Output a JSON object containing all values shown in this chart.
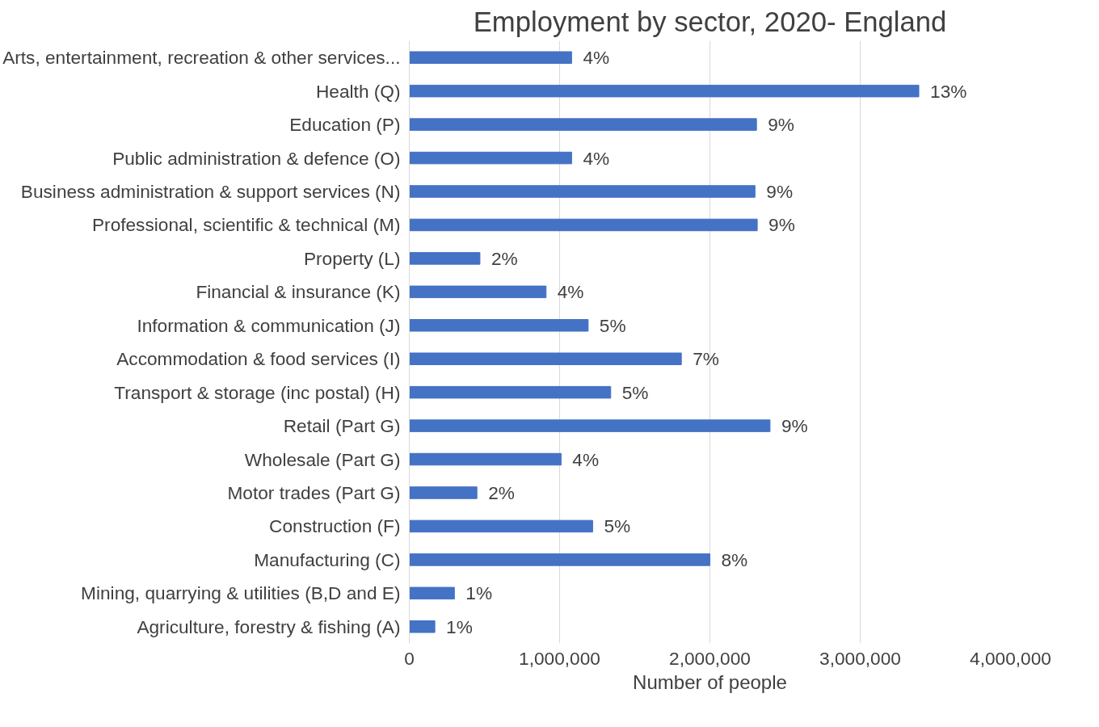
{
  "chart_data": {
    "type": "bar",
    "orientation": "horizontal",
    "title": "Employment by sector, 2020- England",
    "xlabel": "Number of people",
    "categories": [
      "Arts, entertainment, recreation & other services...",
      "Health (Q)",
      "Education (P)",
      "Public administration & defence (O)",
      "Business administration & support services (N)",
      "Professional, scientific & technical (M)",
      "Property (L)",
      "Financial & insurance (K)",
      "Information & communication (J)",
      "Accommodation & food services (I)",
      "Transport & storage (inc postal) (H)",
      "Retail (Part G)",
      "Wholesale (Part G)",
      "Motor trades (Part G)",
      "Construction (F)",
      "Manufacturing (C)",
      "Mining, quarrying & utilities (B,D and E)",
      "Agriculture, forestry & fishing (A)"
    ],
    "values": [
      1080000,
      3390000,
      2310000,
      1080000,
      2300000,
      2315000,
      470000,
      910000,
      1190000,
      1810000,
      1340000,
      2400000,
      1010000,
      450000,
      1220000,
      2000000,
      300000,
      170000
    ],
    "annotations": [
      {
        "text": "4%",
        "x": 1080000,
        "y": "Arts, entertainment, recreation & other services..."
      },
      {
        "text": "13%",
        "x": 3390000,
        "y": "Health (Q)"
      },
      {
        "text": "9%",
        "x": 2310000,
        "y": "Education (P)"
      },
      {
        "text": "4%",
        "x": 1080000,
        "y": "Public administration & defence (O)"
      },
      {
        "text": "9%",
        "x": 2300000,
        "y": "Business administration & support services (N)"
      },
      {
        "text": "9%",
        "x": 2315000,
        "y": "Professional, scientific & technical (M)"
      },
      {
        "text": "2%",
        "x": 470000,
        "y": "Property (L)"
      },
      {
        "text": "4%",
        "x": 910000,
        "y": "Financial & insurance (K)"
      },
      {
        "text": "5%",
        "x": 1190000,
        "y": "Information & communication (J)"
      },
      {
        "text": "7%",
        "x": 1810000,
        "y": "Accommodation & food services (I)"
      },
      {
        "text": "5%",
        "x": 1340000,
        "y": "Transport & storage (inc postal) (H)"
      },
      {
        "text": "9%",
        "x": 2400000,
        "y": "Retail (Part G)"
      },
      {
        "text": "4%",
        "x": 1010000,
        "y": "Wholesale (Part G)"
      },
      {
        "text": "2%",
        "x": 450000,
        "y": "Motor trades (Part G)"
      },
      {
        "text": "5%",
        "x": 1220000,
        "y": "Construction (F)"
      },
      {
        "text": "8%",
        "x": 2000000,
        "y": "Manufacturing (C)"
      },
      {
        "text": "1%",
        "x": 300000,
        "y": "Mining, quarrying & utilities (B,D and E)"
      },
      {
        "text": "1%",
        "x": 170000,
        "y": "Agriculture, forestry & fishing (A)"
      }
    ],
    "color": "#4472c4",
    "xlim": [
      0,
      4000000
    ],
    "xticks": [
      0,
      {
        "value": 1000000,
        "label": "1,000,000"
      },
      {
        "value": 2000000,
        "label": "2,000,000"
      },
      {
        "value": 3000000,
        "label": "3,000,000"
      },
      {
        "value": 4000000,
        "label": "4,000,000"
      }
    ],
    "grid": "x"
  }
}
